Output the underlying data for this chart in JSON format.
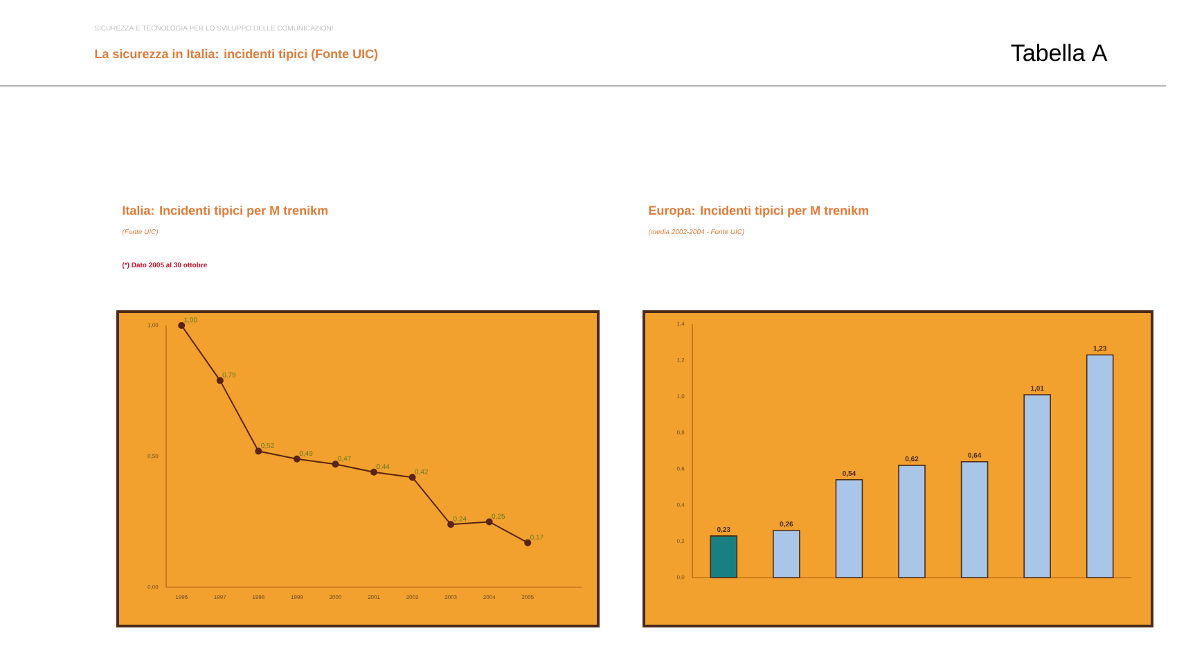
{
  "chart_data": [
    {
      "type": "other",
      "title": "La sicurezza in Italia: incidenti tipici (Fonte UIC)",
      "subtitle": "SICUREZZA E TECNOLOGIA PER LO SVILUPPO DELLE COMUNICAZIONI",
      "annotations": [
        "Tabella A"
      ]
    },
    {
      "type": "line",
      "title": "Italia: Incidenti tipici per M trenikm",
      "subtitle": "(Fonte UIC)",
      "annotations": [
        "(*) Dato 2005 al 30 ottobre"
      ],
      "categories": [
        "1996",
        "1997",
        "1998",
        "1999",
        "2000",
        "2001",
        "2002",
        "2003",
        "2004",
        "2005"
      ],
      "values": [
        1.0,
        0.79,
        0.52,
        0.49,
        0.47,
        0.44,
        0.42,
        0.24,
        0.25,
        0.17
      ],
      "value_labels": [
        "1,00",
        "0,79",
        "0,52",
        "0,49",
        "0,47",
        "0,44",
        "0,42",
        "0,24",
        "0,25",
        "0,17"
      ],
      "color": "#5a2410",
      "marker": "circle",
      "line_style": "solid",
      "ylim": [
        0,
        1
      ],
      "yticks": [
        {
          "value": 0,
          "label": "0,00"
        },
        {
          "value": 0.5,
          "label": "0,50"
        },
        {
          "value": 1,
          "label": "1,00"
        }
      ]
    },
    {
      "type": "bar",
      "title": "Europa: Incidenti tipici per M trenikm",
      "subtitle": "(media 2002-2004 - Fonte UIC)",
      "categories": [
        null,
        null,
        null,
        null,
        null,
        null,
        null
      ],
      "values": [
        0.23,
        0.26,
        0.54,
        0.62,
        0.64,
        1.01,
        1.23
      ],
      "value_labels": [
        "0,23",
        "0,26",
        "0,54",
        "0,62",
        "0,64",
        "1,01",
        "1,23"
      ],
      "colors": [
        "#1a7f80",
        "#a9c6e8",
        "#a9c6e8",
        "#a9c6e8",
        "#a9c6e8",
        "#a9c6e8",
        "#a9c6e8"
      ],
      "ylim": [
        0,
        1.4
      ],
      "yticks": [
        {
          "value": 0,
          "label": "0,0"
        },
        {
          "value": 0.2,
          "label": "0,2"
        },
        {
          "value": 0.4,
          "label": "0,4"
        },
        {
          "value": 0.6,
          "label": "0,6"
        },
        {
          "value": 0.8,
          "label": "0,8"
        },
        {
          "value": 1.0,
          "label": "1,0"
        },
        {
          "value": 1.2,
          "label": "1,2"
        },
        {
          "value": 1.4,
          "label": "1,4"
        }
      ]
    }
  ]
}
